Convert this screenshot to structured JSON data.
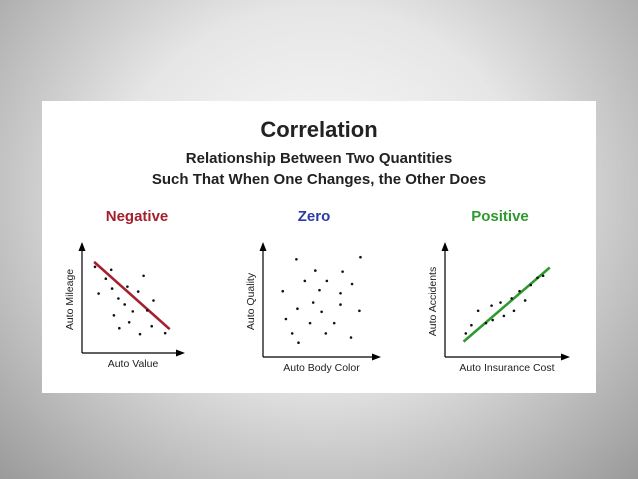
{
  "title": "Correlation",
  "subtitle_line1": "Relationship Between Two Quantities",
  "subtitle_line2": "Such That When One Changes, the Other Does",
  "colors": {
    "negative": "#a3202c",
    "zero": "#2b3ba8",
    "positive": "#2e9a2e",
    "text": "#222222"
  },
  "chart_data": [
    {
      "type": "scatter",
      "title": "Negative",
      "xlabel": "Auto Value",
      "ylabel": "Auto Mileage",
      "xlim": [
        0,
        10
      ],
      "ylim": [
        0,
        10
      ],
      "points": [
        [
          1.0,
          8.3
        ],
        [
          2.8,
          8.0
        ],
        [
          2.2,
          7.1
        ],
        [
          6.4,
          7.4
        ],
        [
          2.9,
          6.1
        ],
        [
          4.6,
          6.3
        ],
        [
          5.8,
          5.8
        ],
        [
          1.4,
          5.6
        ],
        [
          3.6,
          5.1
        ],
        [
          7.5,
          4.9
        ],
        [
          4.3,
          4.5
        ],
        [
          5.2,
          3.8
        ],
        [
          6.8,
          3.9
        ],
        [
          3.1,
          3.4
        ],
        [
          4.8,
          2.7
        ],
        [
          7.3,
          2.3
        ],
        [
          3.7,
          2.1
        ],
        [
          8.8,
          1.6
        ],
        [
          6.0,
          1.5
        ]
      ],
      "trend_line": {
        "start": [
          0.9,
          8.8
        ],
        "end": [
          9.3,
          2.0
        ]
      }
    },
    {
      "type": "scatter",
      "title": "Zero",
      "xlabel": "Auto Body Color",
      "ylabel": "Auto Quality",
      "xlim": [
        0,
        10
      ],
      "ylim": [
        0,
        10
      ],
      "points": [
        [
          2.8,
          9.1
        ],
        [
          8.9,
          9.3
        ],
        [
          4.6,
          8.0
        ],
        [
          7.2,
          7.9
        ],
        [
          3.6,
          7.0
        ],
        [
          5.7,
          7.0
        ],
        [
          8.1,
          6.7
        ],
        [
          1.5,
          6.0
        ],
        [
          5.0,
          6.1
        ],
        [
          7.0,
          5.8
        ],
        [
          2.9,
          4.3
        ],
        [
          5.2,
          4.0
        ],
        [
          8.8,
          4.1
        ],
        [
          1.8,
          3.3
        ],
        [
          4.1,
          2.9
        ],
        [
          6.4,
          2.9
        ],
        [
          2.4,
          1.9
        ],
        [
          5.6,
          1.9
        ],
        [
          8.0,
          1.5
        ],
        [
          3.0,
          1.0
        ],
        [
          7.0,
          4.7
        ],
        [
          4.4,
          4.9
        ]
      ],
      "trend_line": null
    },
    {
      "type": "scatter",
      "title": "Positive",
      "xlabel": "Auto Insurance Cost",
      "ylabel": "Auto Accidents",
      "xlim": [
        0,
        10
      ],
      "ylim": [
        0,
        10
      ],
      "points": [
        [
          8.4,
          7.5
        ],
        [
          7.3,
          6.6
        ],
        [
          6.3,
          6.0
        ],
        [
          5.6,
          5.3
        ],
        [
          4.6,
          4.9
        ],
        [
          3.8,
          4.6
        ],
        [
          2.6,
          4.1
        ],
        [
          6.8,
          5.1
        ],
        [
          4.9,
          3.6
        ],
        [
          3.3,
          2.9
        ],
        [
          2.0,
          2.7
        ],
        [
          5.8,
          4.1
        ],
        [
          1.5,
          1.9
        ],
        [
          7.9,
          7.3
        ],
        [
          3.9,
          3.2
        ]
      ],
      "trend_line": {
        "start": [
          1.3,
          1.1
        ],
        "end": [
          9.0,
          8.3
        ]
      }
    }
  ]
}
